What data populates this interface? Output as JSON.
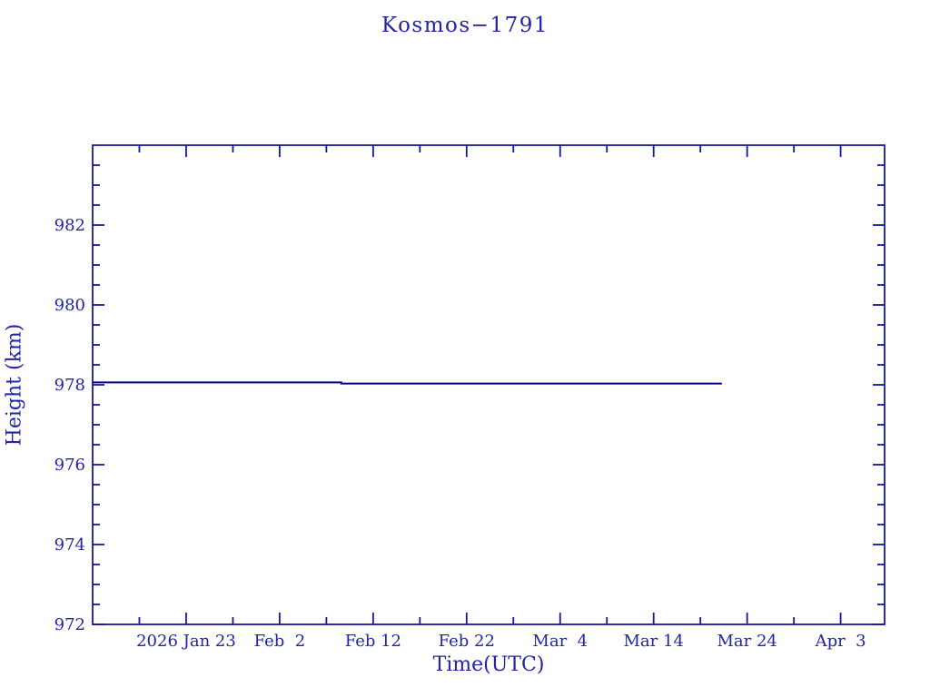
{
  "page": {
    "background": "#ffffff"
  },
  "chart_data": {
    "type": "line",
    "title": "Kosmos−1791",
    "xlabel": "Time(UTC)",
    "ylabel": "Height (km)",
    "grid": false,
    "legend": null,
    "x_axis": {
      "unit": "days since 2026 Jan 13",
      "xlim": [
        0,
        84.7
      ],
      "major_ticks": [
        10,
        20,
        30,
        40,
        50,
        60,
        70,
        80
      ],
      "major_labels": [
        "2026 Jan 23",
        "Feb  2",
        "Feb 12",
        "Feb 22",
        "Mar  4",
        "Mar 14",
        "Mar 24",
        "Apr  3"
      ],
      "minor_ticks": [
        5,
        15,
        25,
        35,
        45,
        55,
        65,
        75
      ]
    },
    "y_axis": {
      "ylim": [
        972,
        984
      ],
      "major_ticks": [
        972,
        974,
        976,
        978,
        980,
        982
      ],
      "major_labels": [
        "972",
        "974",
        "976",
        "978",
        "980",
        "982"
      ],
      "minor_step": 0.5
    },
    "series": [
      {
        "name": "height",
        "points": [
          {
            "day": 0.0,
            "km": 978.06
          },
          {
            "day": 26.6,
            "km": 978.06
          },
          {
            "day": 26.6,
            "km": 978.03
          },
          {
            "day": 67.3,
            "km": 978.03
          }
        ]
      }
    ],
    "colors": {
      "line": "#000087",
      "axis": "#16169a",
      "text": "#2222aa"
    }
  }
}
